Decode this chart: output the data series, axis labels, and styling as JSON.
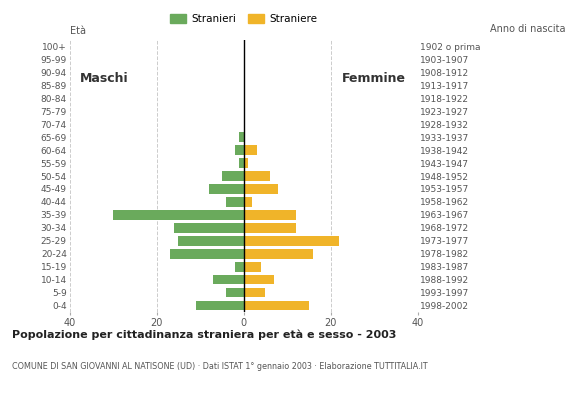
{
  "age_groups": [
    "0-4",
    "5-9",
    "10-14",
    "15-19",
    "20-24",
    "25-29",
    "30-34",
    "35-39",
    "40-44",
    "45-49",
    "50-54",
    "55-59",
    "60-64",
    "65-69",
    "70-74",
    "75-79",
    "80-84",
    "85-89",
    "90-94",
    "95-99",
    "100+"
  ],
  "birth_years": [
    "1998-2002",
    "1993-1997",
    "1988-1992",
    "1983-1987",
    "1978-1982",
    "1973-1977",
    "1968-1972",
    "1963-1967",
    "1958-1962",
    "1953-1957",
    "1948-1952",
    "1943-1947",
    "1938-1942",
    "1933-1937",
    "1928-1932",
    "1923-1927",
    "1918-1922",
    "1913-1917",
    "1908-1912",
    "1903-1907",
    "1902 o prima"
  ],
  "males": [
    11,
    4,
    7,
    2,
    17,
    15,
    16,
    30,
    4,
    8,
    5,
    1,
    2,
    1,
    0,
    0,
    0,
    0,
    0,
    0,
    0
  ],
  "females": [
    15,
    5,
    7,
    4,
    16,
    22,
    12,
    12,
    2,
    8,
    6,
    1,
    3,
    0,
    0,
    0,
    0,
    0,
    0,
    0,
    0
  ],
  "male_color": "#6aaa5c",
  "female_color": "#f0b429",
  "bar_height": 0.75,
  "xlim": 40,
  "title": "Popolazione per cittadinanza straniera per età e sesso - 2003",
  "subtitle": "COMUNE DI SAN GIOVANNI AL NATISONE (UD) · Dati ISTAT 1° gennaio 2003 · Elaborazione TUTTITALIA.IT",
  "xlabel_left": "Età",
  "xlabel_right": "Anno di nascita",
  "legend_male": "Stranieri",
  "legend_female": "Straniere",
  "label_maschi": "Maschi",
  "label_femmine": "Femmine",
  "background_color": "#ffffff",
  "grid_color": "#cccccc"
}
